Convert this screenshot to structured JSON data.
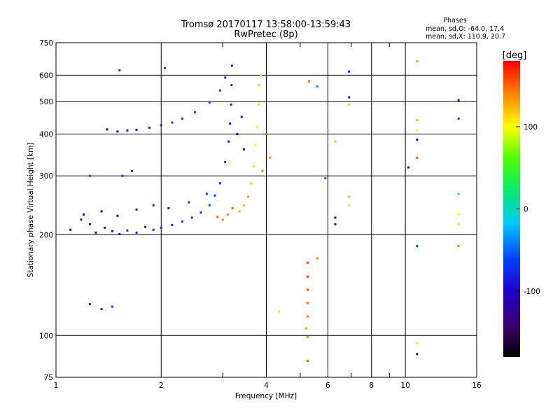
{
  "title_line1": "Tromsø 20170117 13:58:00-13:59:43",
  "title_line2": "RwPretec (8p)",
  "phases_header": "Phases",
  "phases_o": "mean, sd,O: -64.0, 17.4",
  "phases_x": "mean, sd,X: 110.9, 20.7",
  "chart_data": {
    "type": "scatter",
    "xlabel": "Frequency [MHz]",
    "ylabel": "Stationary phase Virtual Height [km]",
    "xscale": "log",
    "yscale": "log",
    "xlim": [
      1,
      16
    ],
    "ylim": [
      75,
      750
    ],
    "x_ticks": [
      1,
      2,
      4,
      6,
      8,
      10,
      16
    ],
    "x_tick_labels": [
      "1",
      "2",
      "4",
      "6",
      "8",
      "10",
      "16"
    ],
    "y_ticks": [
      75,
      100,
      200,
      300,
      400,
      500,
      600,
      750
    ],
    "y_tick_labels": [
      "75",
      "100",
      "200",
      "300",
      "400",
      "500",
      "600",
      "750"
    ],
    "grid": true,
    "colorbar": {
      "label": "[deg]",
      "range": [
        -180,
        180
      ],
      "ticks": [
        100,
        0,
        -100
      ],
      "tick_labels": [
        "100",
        "0",
        "-100"
      ]
    },
    "series": [
      {
        "group": "o-mode",
        "mean_phase": -64.0,
        "sd_phase": 17.4,
        "points": [
          {
            "x": 1.1,
            "y": 207,
            "p": -105
          },
          {
            "x": 1.18,
            "y": 222,
            "p": -90
          },
          {
            "x": 1.25,
            "y": 215,
            "p": -98
          },
          {
            "x": 1.3,
            "y": 203,
            "p": -110
          },
          {
            "x": 1.38,
            "y": 210,
            "p": -95
          },
          {
            "x": 1.45,
            "y": 205,
            "p": -100
          },
          {
            "x": 1.52,
            "y": 201,
            "p": -92
          },
          {
            "x": 1.6,
            "y": 206,
            "p": -85
          },
          {
            "x": 1.7,
            "y": 203,
            "p": -88
          },
          {
            "x": 1.8,
            "y": 211,
            "p": -80
          },
          {
            "x": 1.9,
            "y": 207,
            "p": -75
          },
          {
            "x": 2.0,
            "y": 210,
            "p": -70
          },
          {
            "x": 2.15,
            "y": 214,
            "p": -72
          },
          {
            "x": 2.3,
            "y": 219,
            "p": -66
          },
          {
            "x": 2.45,
            "y": 225,
            "p": -60
          },
          {
            "x": 2.6,
            "y": 233,
            "p": -62
          },
          {
            "x": 2.75,
            "y": 245,
            "p": -58
          },
          {
            "x": 2.85,
            "y": 262,
            "p": -65
          },
          {
            "x": 2.95,
            "y": 285,
            "p": -75
          },
          {
            "x": 3.05,
            "y": 330,
            "p": -90
          },
          {
            "x": 3.12,
            "y": 380,
            "p": -100
          },
          {
            "x": 3.15,
            "y": 430,
            "p": -95
          },
          {
            "x": 3.17,
            "y": 490,
            "p": -85
          },
          {
            "x": 3.18,
            "y": 560,
            "p": -80
          },
          {
            "x": 3.19,
            "y": 640,
            "p": -70
          },
          {
            "x": 1.2,
            "y": 230,
            "p": -100
          },
          {
            "x": 1.35,
            "y": 235,
            "p": -108
          },
          {
            "x": 1.5,
            "y": 228,
            "p": -96
          },
          {
            "x": 1.7,
            "y": 238,
            "p": -90
          },
          {
            "x": 1.9,
            "y": 245,
            "p": -82
          },
          {
            "x": 2.1,
            "y": 240,
            "p": -78
          },
          {
            "x": 2.4,
            "y": 250,
            "p": -70
          },
          {
            "x": 2.7,
            "y": 265,
            "p": -72
          },
          {
            "x": 1.4,
            "y": 413,
            "p": -105
          },
          {
            "x": 1.5,
            "y": 407,
            "p": -95
          },
          {
            "x": 1.6,
            "y": 410,
            "p": -90
          },
          {
            "x": 1.7,
            "y": 412,
            "p": -85
          },
          {
            "x": 1.85,
            "y": 418,
            "p": -78
          },
          {
            "x": 2.0,
            "y": 425,
            "p": -70
          },
          {
            "x": 2.15,
            "y": 433,
            "p": -68
          },
          {
            "x": 2.3,
            "y": 445,
            "p": -64
          },
          {
            "x": 2.5,
            "y": 465,
            "p": -60
          },
          {
            "x": 2.75,
            "y": 497,
            "p": -58
          },
          {
            "x": 2.95,
            "y": 540,
            "p": -62
          },
          {
            "x": 3.05,
            "y": 590,
            "p": -66
          },
          {
            "x": 1.25,
            "y": 300,
            "p": -55
          },
          {
            "x": 1.55,
            "y": 300,
            "p": -60
          },
          {
            "x": 1.65,
            "y": 310,
            "p": -70
          },
          {
            "x": 1.25,
            "y": 124,
            "p": -80
          },
          {
            "x": 1.35,
            "y": 120,
            "p": -70
          },
          {
            "x": 1.45,
            "y": 122,
            "p": -65
          },
          {
            "x": 3.3,
            "y": 400,
            "p": -115
          },
          {
            "x": 3.4,
            "y": 450,
            "p": -110
          },
          {
            "x": 3.45,
            "y": 360,
            "p": -120
          },
          {
            "x": 1.52,
            "y": 620,
            "p": -75
          },
          {
            "x": 2.05,
            "y": 630,
            "p": -70
          }
        ]
      },
      {
        "group": "x-mode",
        "mean_phase": 110.9,
        "sd_phase": 20.7,
        "points": [
          {
            "x": 2.9,
            "y": 226,
            "p": 150
          },
          {
            "x": 3.0,
            "y": 222,
            "p": 140
          },
          {
            "x": 3.1,
            "y": 230,
            "p": 135
          },
          {
            "x": 3.2,
            "y": 240,
            "p": 145
          },
          {
            "x": 3.35,
            "y": 235,
            "p": 125
          },
          {
            "x": 3.45,
            "y": 245,
            "p": 120
          },
          {
            "x": 3.55,
            "y": 260,
            "p": 130
          },
          {
            "x": 3.62,
            "y": 285,
            "p": 115
          },
          {
            "x": 3.68,
            "y": 320,
            "p": 110
          },
          {
            "x": 3.72,
            "y": 370,
            "p": 100
          },
          {
            "x": 3.76,
            "y": 420,
            "p": 95
          },
          {
            "x": 3.8,
            "y": 490,
            "p": 85
          },
          {
            "x": 3.82,
            "y": 560,
            "p": 80
          },
          {
            "x": 3.85,
            "y": 600,
            "p": 90
          },
          {
            "x": 3.9,
            "y": 310,
            "p": 140
          },
          {
            "x": 4.0,
            "y": 400,
            "p": 150
          },
          {
            "x": 4.1,
            "y": 340,
            "p": 145
          },
          {
            "x": 5.25,
            "y": 165,
            "p": 160
          },
          {
            "x": 5.25,
            "y": 150,
            "p": 165
          },
          {
            "x": 5.25,
            "y": 137,
            "p": 160
          },
          {
            "x": 5.25,
            "y": 125,
            "p": 150
          },
          {
            "x": 5.25,
            "y": 114,
            "p": 145
          },
          {
            "x": 5.25,
            "y": 99,
            "p": 140
          },
          {
            "x": 5.25,
            "y": 84,
            "p": 150
          },
          {
            "x": 5.2,
            "y": 105,
            "p": 130
          },
          {
            "x": 5.3,
            "y": 575,
            "p": 145
          },
          {
            "x": 5.6,
            "y": 170,
            "p": 140
          },
          {
            "x": 4.35,
            "y": 118,
            "p": 110
          },
          {
            "x": 6.3,
            "y": 380,
            "p": 120
          },
          {
            "x": 6.9,
            "y": 490,
            "p": 80
          },
          {
            "x": 6.9,
            "y": 260,
            "p": 70
          },
          {
            "x": 6.9,
            "y": 245,
            "p": 90
          },
          {
            "x": 10.8,
            "y": 660,
            "p": 130
          },
          {
            "x": 10.8,
            "y": 440,
            "p": 75
          },
          {
            "x": 10.8,
            "y": 410,
            "p": 100
          },
          {
            "x": 10.8,
            "y": 340,
            "p": 150
          },
          {
            "x": 10.8,
            "y": 95,
            "p": 90
          },
          {
            "x": 14.2,
            "y": 230,
            "p": 95
          },
          {
            "x": 14.2,
            "y": 215,
            "p": 110
          },
          {
            "x": 14.2,
            "y": 185,
            "p": 140
          },
          {
            "x": 14.2,
            "y": 265,
            "p": 40
          },
          {
            "x": 6.3,
            "y": 225,
            "p": -110
          },
          {
            "x": 6.3,
            "y": 215,
            "p": -120
          },
          {
            "x": 6.9,
            "y": 515,
            "p": -100
          },
          {
            "x": 10.8,
            "y": 385,
            "p": -120
          },
          {
            "x": 10.8,
            "y": 88,
            "p": -125
          },
          {
            "x": 10.2,
            "y": 318,
            "p": -110
          },
          {
            "x": 14.2,
            "y": 505,
            "p": -95
          },
          {
            "x": 14.2,
            "y": 445,
            "p": -70
          },
          {
            "x": 10.8,
            "y": 185,
            "p": -55
          },
          {
            "x": 6.9,
            "y": 615,
            "p": -90
          },
          {
            "x": 5.9,
            "y": 295,
            "p": -50
          },
          {
            "x": 5.6,
            "y": 555,
            "p": -40
          }
        ]
      }
    ]
  }
}
